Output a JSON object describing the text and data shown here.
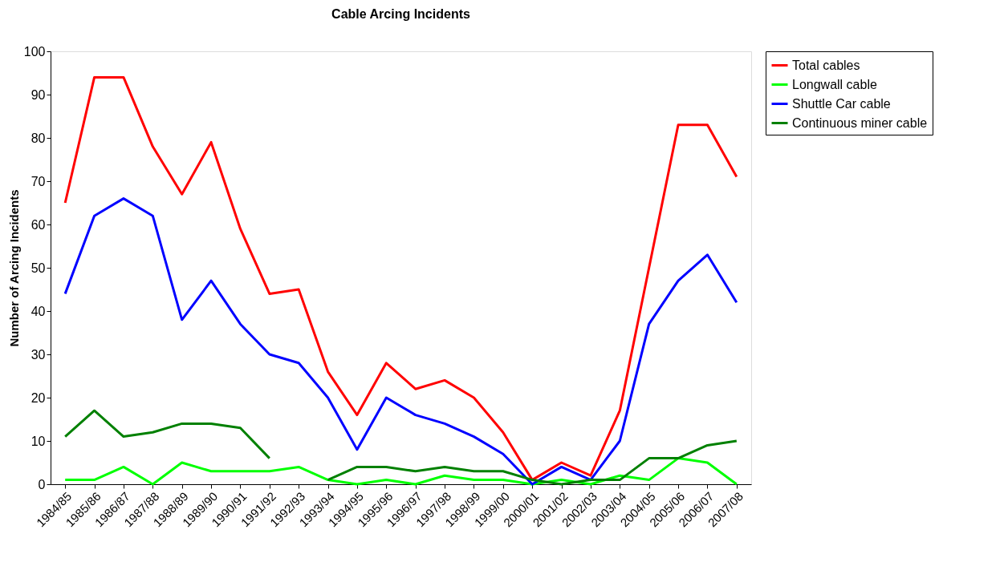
{
  "chart_data": {
    "type": "line",
    "title": "Cable Arcing Incidents",
    "ylabel": "Number of Arcing Incidents",
    "categories": [
      "1984/85",
      "1985/86",
      "1986/87",
      "1987/88",
      "1988/89",
      "1989/90",
      "1990/91",
      "1991/92",
      "1992/93",
      "1993/94",
      "1994/95",
      "1995/96",
      "1996/97",
      "1997/98",
      "1998/99",
      "1999/00",
      "2000/01",
      "2001/02",
      "2002/03",
      "2003/04",
      "2004/05",
      "2005/06",
      "2006/07",
      "2007/08"
    ],
    "series": [
      {
        "name": "Total cables",
        "color": "#ff0000",
        "values": [
          65,
          94,
          94,
          78,
          67,
          79,
          59,
          44,
          45,
          26,
          16,
          28,
          22,
          24,
          20,
          12,
          1,
          5,
          2,
          17,
          50,
          83,
          83,
          71
        ]
      },
      {
        "name": "Longwall cable",
        "color": "#00ff00",
        "values": [
          1,
          1,
          4,
          0,
          5,
          3,
          3,
          3,
          4,
          1,
          0,
          1,
          0,
          2,
          1,
          1,
          0,
          1,
          0,
          2,
          1,
          6,
          5,
          0
        ]
      },
      {
        "name": "Shuttle Car cable",
        "color": "#0000ff",
        "values": [
          44,
          62,
          66,
          62,
          38,
          47,
          37,
          30,
          28,
          20,
          8,
          20,
          16,
          14,
          11,
          7,
          0,
          4,
          1,
          10,
          37,
          47,
          53,
          42
        ]
      },
      {
        "name": "Continuous miner cable",
        "color": "#008000",
        "values": [
          11,
          17,
          11,
          12,
          14,
          14,
          13,
          6,
          null,
          1,
          4,
          4,
          3,
          4,
          3,
          3,
          1,
          0,
          1,
          1,
          6,
          6,
          9,
          10
        ]
      }
    ],
    "ylim": [
      0,
      100
    ],
    "yticks": [
      0,
      10,
      20,
      30,
      40,
      50,
      60,
      70,
      80,
      90,
      100
    ],
    "grid": false,
    "legend": "right",
    "marker": "none",
    "line_style": "solid"
  }
}
